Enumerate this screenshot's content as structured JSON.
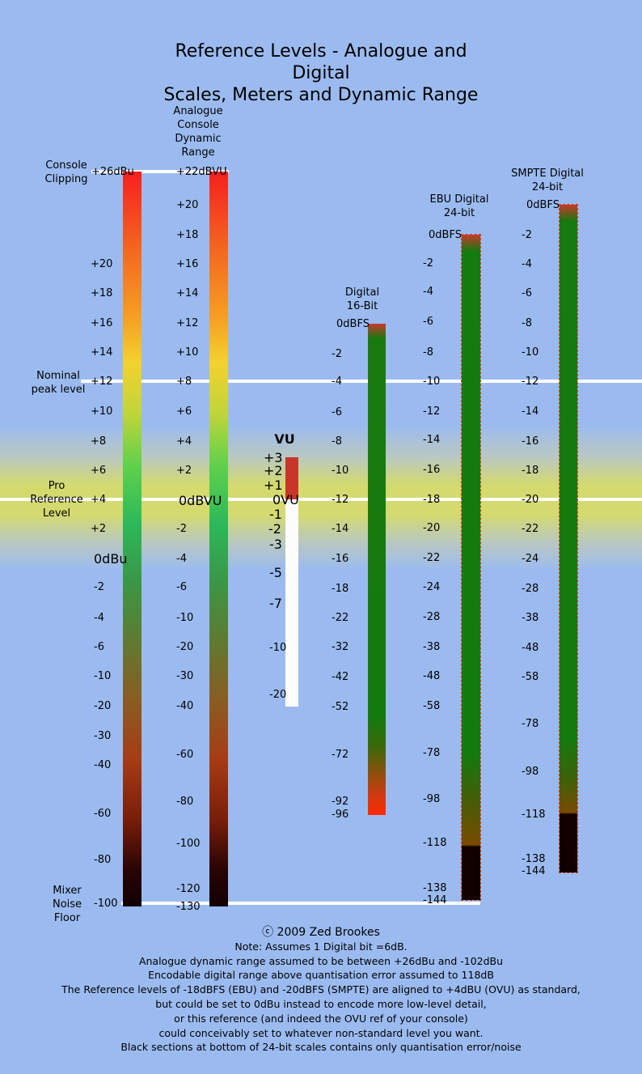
{
  "title_line1": "Reference Levels - Analogue and Digital",
  "title_line2": "Scales, Meters and Dynamic Range",
  "side_labels": {
    "console_clipping": [
      "Console",
      "Clipping"
    ],
    "nominal_peak": [
      "Nominal",
      "peak level"
    ],
    "pro_reference": [
      "Pro",
      "Reference",
      "Level"
    ],
    "mixer_noise": [
      "Mixer",
      "Noise",
      "Floor"
    ]
  },
  "columns": {
    "dbu": {
      "labels": [
        "+26dBu",
        "+20",
        "+18",
        "+16",
        "+14",
        "+12",
        "+10",
        "+8",
        "+6",
        "+4",
        "+2",
        "0dBu",
        "-2",
        "-4",
        "-6",
        "-10",
        "-20",
        "-30",
        "-40",
        "-60",
        "-80",
        "-100"
      ]
    },
    "dbvu": {
      "title": [
        "Analogue",
        "Console",
        "Dynamic",
        "Range"
      ],
      "labels": [
        "+22dBVU",
        "+20",
        "+18",
        "+16",
        "+14",
        "+12",
        "+10",
        "+8",
        "+6",
        "+4",
        "+2",
        "0dBVU",
        "-2",
        "-4",
        "-6",
        "-10",
        "-20",
        "-30",
        "-40",
        "-60",
        "-80",
        "-100",
        "-120",
        "-130"
      ]
    },
    "vu": {
      "title": "VU",
      "labels": [
        "+3",
        "+2",
        "+1",
        "0VU",
        "-1",
        "-2",
        "-3",
        "-5",
        "-7",
        "-10",
        "-20"
      ]
    },
    "digital16": {
      "title": [
        "Digital",
        "16-Bit"
      ],
      "labels": [
        "0dBFS",
        "-2",
        "-4",
        "-6",
        "-8",
        "-10",
        "-12",
        "-14",
        "-16",
        "-18",
        "-22",
        "-32",
        "-42",
        "-52",
        "-72",
        "-92",
        "-96"
      ]
    },
    "ebu": {
      "title": [
        "EBU Digital",
        "24-bit"
      ],
      "labels": [
        "0dBFS",
        "-2",
        "-4",
        "-6",
        "-8",
        "-10",
        "-12",
        "-14",
        "-16",
        "-18",
        "-20",
        "-22",
        "-24",
        "-28",
        "-38",
        "-48",
        "-58",
        "-78",
        "-98",
        "-118",
        "-138",
        "-144"
      ]
    },
    "smpte": {
      "title": [
        "SMPTE Digital",
        "24-bit"
      ],
      "labels": [
        "0dBFS",
        "-2",
        "-4",
        "-6",
        "-8",
        "-10",
        "-12",
        "-14",
        "-16",
        "-18",
        "-20",
        "-22",
        "-24",
        "-28",
        "-38",
        "-48",
        "-58",
        "-78",
        "-98",
        "-118",
        "-138",
        "-144"
      ]
    }
  },
  "footer": [
    "ⓒ 2009 Zed Brookes",
    "Note: Assumes 1 Digital bit =6dB.",
    "Analogue dynamic range assumed to be between +26dBu and -102dBu",
    "Encodable digital range above quantisation error assumed to 118dB",
    "The Reference levels of -18dBFS (EBU) and -20dBFS (SMPTE) are aligned to +4dBU (OVU) as standard,",
    "but could be set to 0dBu instead to encode more low-level detail,",
    "or this reference (and indeed the OVU ref of your console)",
    "could conceivably set to whatever non-standard level you want.",
    "Black sections at bottom of 24-bit scales contains only quantisation error/noise"
  ],
  "colors": {
    "background": "#9bbbf0",
    "reference_band": "#d4da6e",
    "digital_green": "#137a0d",
    "clip_red": "#f61f1f",
    "vu_red": "#c8362a"
  }
}
